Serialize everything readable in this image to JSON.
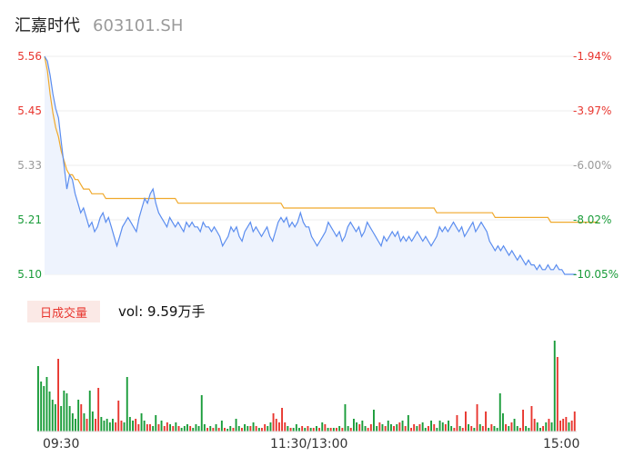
{
  "stock": {
    "name": "汇嘉时代",
    "code": "603101.SH"
  },
  "price_axis": {
    "left_labels": [
      "5.56",
      "5.45",
      "5.33",
      "5.21",
      "5.10"
    ],
    "right_labels": [
      "-1.94%",
      "-3.97%",
      "-6.00%",
      "-8.02%",
      "-10.05%"
    ],
    "left_colors": [
      "#e8362f",
      "#e8362f",
      "#9a9a9a",
      "#1a9c3a",
      "#1a9c3a"
    ],
    "right_colors": [
      "#e8362f",
      "#e8362f",
      "#9a9a9a",
      "#1a9c3a",
      "#1a9c3a"
    ]
  },
  "volume_panel": {
    "label": "日成交量",
    "value_text": "vol: 9.59万手"
  },
  "time_axis": {
    "start": "09:30",
    "mid": "11:30/13:00",
    "end": "15:00"
  },
  "colors": {
    "price_line": "#5b8def",
    "avg_line": "#f0a92c",
    "up": "#e8362f",
    "down": "#1a9c3a"
  },
  "chart_data": {
    "type": "line",
    "ylim": [
      5.1,
      5.56
    ],
    "series": [
      {
        "values": [
          5.56,
          5.55,
          5.52,
          5.48,
          5.45,
          5.43,
          5.38,
          5.33,
          5.28,
          5.31,
          5.3,
          5.27,
          5.25,
          5.23,
          5.24,
          5.22,
          5.2,
          5.21,
          5.19,
          5.2,
          5.22,
          5.23,
          5.21,
          5.22,
          5.2,
          5.18,
          5.16,
          5.18,
          5.2,
          5.21,
          5.22,
          5.21,
          5.2,
          5.19,
          5.22,
          5.24,
          5.26,
          5.25,
          5.27,
          5.28,
          5.25,
          5.23,
          5.22,
          5.21,
          5.2,
          5.22,
          5.21,
          5.2,
          5.21,
          5.2,
          5.19,
          5.21,
          5.2,
          5.21,
          5.2,
          5.2,
          5.19,
          5.21,
          5.2,
          5.2,
          5.19,
          5.2,
          5.19,
          5.18,
          5.16,
          5.17,
          5.18,
          5.2,
          5.19,
          5.2,
          5.18,
          5.17,
          5.19,
          5.2,
          5.21,
          5.19,
          5.2,
          5.19,
          5.18,
          5.19,
          5.2,
          5.18,
          5.17,
          5.19,
          5.21,
          5.22,
          5.21,
          5.22,
          5.2,
          5.21,
          5.2,
          5.21,
          5.23,
          5.21,
          5.2,
          5.2,
          5.18,
          5.17,
          5.16,
          5.17,
          5.18,
          5.19,
          5.21,
          5.2,
          5.19,
          5.18,
          5.19,
          5.17,
          5.18,
          5.2,
          5.21,
          5.2,
          5.19,
          5.2,
          5.18,
          5.19,
          5.21,
          5.2,
          5.19,
          5.18,
          5.17,
          5.16,
          5.18,
          5.17,
          5.18,
          5.19,
          5.18,
          5.19,
          5.17,
          5.18,
          5.17,
          5.18,
          5.17,
          5.18,
          5.19,
          5.18,
          5.17,
          5.18,
          5.17,
          5.16,
          5.17,
          5.18,
          5.2,
          5.19,
          5.2,
          5.19,
          5.2,
          5.21,
          5.2,
          5.19,
          5.2,
          5.18,
          5.19,
          5.2,
          5.21,
          5.19,
          5.2,
          5.21,
          5.2,
          5.19,
          5.17,
          5.16,
          5.15,
          5.16,
          5.15,
          5.16,
          5.15,
          5.14,
          5.15,
          5.14,
          5.13,
          5.14,
          5.13,
          5.12,
          5.13,
          5.12,
          5.12,
          5.11,
          5.12,
          5.11,
          5.11,
          5.12,
          5.11,
          5.11,
          5.12,
          5.11,
          5.11,
          5.1,
          5.1,
          5.1,
          5.1,
          5.1
        ]
      },
      {
        "values": [
          5.56,
          5.53,
          5.48,
          5.44,
          5.41,
          5.39,
          5.36,
          5.34,
          5.32,
          5.31,
          5.31,
          5.3,
          5.3,
          5.29,
          5.28,
          5.28,
          5.28,
          5.27,
          5.27,
          5.27,
          5.27,
          5.27,
          5.26,
          5.26,
          5.26,
          5.26,
          5.26,
          5.26,
          5.26,
          5.26,
          5.26,
          5.26,
          5.26,
          5.26,
          5.26,
          5.26,
          5.26,
          5.26,
          5.26,
          5.26,
          5.26,
          5.26,
          5.26,
          5.26,
          5.26,
          5.26,
          5.26,
          5.26,
          5.25,
          5.25,
          5.25,
          5.25,
          5.25,
          5.25,
          5.25,
          5.25,
          5.25,
          5.25,
          5.25,
          5.25,
          5.25,
          5.25,
          5.25,
          5.25,
          5.25,
          5.25,
          5.25,
          5.25,
          5.25,
          5.25,
          5.25,
          5.25,
          5.25,
          5.25,
          5.25,
          5.25,
          5.25,
          5.25,
          5.25,
          5.25,
          5.25,
          5.25,
          5.25,
          5.25,
          5.25,
          5.25,
          5.24,
          5.24,
          5.24,
          5.24,
          5.24,
          5.24,
          5.24,
          5.24,
          5.24,
          5.24,
          5.24,
          5.24,
          5.24,
          5.24,
          5.24,
          5.24,
          5.24,
          5.24,
          5.24,
          5.24,
          5.24,
          5.24,
          5.24,
          5.24,
          5.24,
          5.24,
          5.24,
          5.24,
          5.24,
          5.24,
          5.24,
          5.24,
          5.24,
          5.24,
          5.24,
          5.24,
          5.24,
          5.24,
          5.24,
          5.24,
          5.24,
          5.24,
          5.24,
          5.24,
          5.24,
          5.24,
          5.24,
          5.24,
          5.24,
          5.24,
          5.24,
          5.24,
          5.24,
          5.24,
          5.24,
          5.23,
          5.23,
          5.23,
          5.23,
          5.23,
          5.23,
          5.23,
          5.23,
          5.23,
          5.23,
          5.23,
          5.23,
          5.23,
          5.23,
          5.23,
          5.23,
          5.23,
          5.23,
          5.23,
          5.23,
          5.23,
          5.22,
          5.22,
          5.22,
          5.22,
          5.22,
          5.22,
          5.22,
          5.22,
          5.22,
          5.22,
          5.22,
          5.22,
          5.22,
          5.22,
          5.22,
          5.22,
          5.22,
          5.22,
          5.22,
          5.22,
          5.21,
          5.21,
          5.21,
          5.21,
          5.21,
          5.21,
          5.21,
          5.21,
          5.21,
          5.21,
          5.21,
          5.21,
          5.21,
          5.21,
          5.21,
          5.21,
          5.21,
          5.21
        ]
      }
    ],
    "volume": [
      [
        72,
        "down"
      ],
      [
        55,
        "down"
      ],
      [
        50,
        "down"
      ],
      [
        60,
        "down"
      ],
      [
        44,
        "down"
      ],
      [
        35,
        "down"
      ],
      [
        30,
        "down"
      ],
      [
        80,
        "up"
      ],
      [
        28,
        "down"
      ],
      [
        45,
        "down"
      ],
      [
        42,
        "down"
      ],
      [
        28,
        "down"
      ],
      [
        20,
        "down"
      ],
      [
        14,
        "down"
      ],
      [
        35,
        "down"
      ],
      [
        30,
        "up"
      ],
      [
        20,
        "down"
      ],
      [
        14,
        "up"
      ],
      [
        45,
        "down"
      ],
      [
        22,
        "down"
      ],
      [
        14,
        "up"
      ],
      [
        48,
        "up"
      ],
      [
        16,
        "down"
      ],
      [
        12,
        "down"
      ],
      [
        14,
        "down"
      ],
      [
        10,
        "down"
      ],
      [
        14,
        "down"
      ],
      [
        10,
        "up"
      ],
      [
        34,
        "up"
      ],
      [
        12,
        "up"
      ],
      [
        10,
        "down"
      ],
      [
        60,
        "down"
      ],
      [
        16,
        "down"
      ],
      [
        12,
        "down"
      ],
      [
        14,
        "up"
      ],
      [
        8,
        "up"
      ],
      [
        20,
        "down"
      ],
      [
        12,
        "down"
      ],
      [
        8,
        "up"
      ],
      [
        8,
        "up"
      ],
      [
        6,
        "down"
      ],
      [
        18,
        "down"
      ],
      [
        8,
        "up"
      ],
      [
        12,
        "down"
      ],
      [
        6,
        "up"
      ],
      [
        10,
        "up"
      ],
      [
        8,
        "down"
      ],
      [
        6,
        "up"
      ],
      [
        10,
        "down"
      ],
      [
        6,
        "up"
      ],
      [
        4,
        "down"
      ],
      [
        6,
        "down"
      ],
      [
        8,
        "down"
      ],
      [
        6,
        "up"
      ],
      [
        4,
        "down"
      ],
      [
        8,
        "down"
      ],
      [
        6,
        "down"
      ],
      [
        40,
        "down"
      ],
      [
        8,
        "down"
      ],
      [
        4,
        "up"
      ],
      [
        6,
        "down"
      ],
      [
        4,
        "up"
      ],
      [
        8,
        "down"
      ],
      [
        4,
        "up"
      ],
      [
        12,
        "down"
      ],
      [
        4,
        "up"
      ],
      [
        3,
        "down"
      ],
      [
        6,
        "down"
      ],
      [
        4,
        "up"
      ],
      [
        14,
        "down"
      ],
      [
        6,
        "down"
      ],
      [
        4,
        "up"
      ],
      [
        8,
        "down"
      ],
      [
        6,
        "down"
      ],
      [
        6,
        "up"
      ],
      [
        10,
        "down"
      ],
      [
        6,
        "up"
      ],
      [
        4,
        "down"
      ],
      [
        4,
        "up"
      ],
      [
        8,
        "up"
      ],
      [
        6,
        "down"
      ],
      [
        10,
        "down"
      ],
      [
        20,
        "up"
      ],
      [
        14,
        "up"
      ],
      [
        10,
        "up"
      ],
      [
        26,
        "up"
      ],
      [
        10,
        "up"
      ],
      [
        6,
        "down"
      ],
      [
        4,
        "up"
      ],
      [
        4,
        "down"
      ],
      [
        8,
        "down"
      ],
      [
        4,
        "down"
      ],
      [
        6,
        "up"
      ],
      [
        4,
        "down"
      ],
      [
        6,
        "up"
      ],
      [
        4,
        "down"
      ],
      [
        4,
        "up"
      ],
      [
        6,
        "down"
      ],
      [
        4,
        "up"
      ],
      [
        10,
        "down"
      ],
      [
        8,
        "up"
      ],
      [
        4,
        "down"
      ],
      [
        4,
        "up"
      ],
      [
        4,
        "down"
      ],
      [
        4,
        "up"
      ],
      [
        6,
        "down"
      ],
      [
        4,
        "up"
      ],
      [
        30,
        "down"
      ],
      [
        6,
        "down"
      ],
      [
        4,
        "up"
      ],
      [
        14,
        "down"
      ],
      [
        10,
        "down"
      ],
      [
        8,
        "up"
      ],
      [
        12,
        "down"
      ],
      [
        6,
        "down"
      ],
      [
        4,
        "up"
      ],
      [
        8,
        "up"
      ],
      [
        24,
        "down"
      ],
      [
        6,
        "down"
      ],
      [
        10,
        "up"
      ],
      [
        8,
        "down"
      ],
      [
        6,
        "up"
      ],
      [
        12,
        "down"
      ],
      [
        8,
        "down"
      ],
      [
        6,
        "up"
      ],
      [
        8,
        "down"
      ],
      [
        10,
        "up"
      ],
      [
        12,
        "down"
      ],
      [
        6,
        "up"
      ],
      [
        18,
        "down"
      ],
      [
        4,
        "up"
      ],
      [
        8,
        "up"
      ],
      [
        6,
        "down"
      ],
      [
        8,
        "up"
      ],
      [
        10,
        "down"
      ],
      [
        4,
        "down"
      ],
      [
        6,
        "up"
      ],
      [
        12,
        "down"
      ],
      [
        8,
        "up"
      ],
      [
        4,
        "down"
      ],
      [
        12,
        "down"
      ],
      [
        10,
        "down"
      ],
      [
        8,
        "up"
      ],
      [
        12,
        "down"
      ],
      [
        6,
        "down"
      ],
      [
        4,
        "up"
      ],
      [
        18,
        "up"
      ],
      [
        6,
        "down"
      ],
      [
        4,
        "up"
      ],
      [
        22,
        "up"
      ],
      [
        8,
        "down"
      ],
      [
        6,
        "up"
      ],
      [
        4,
        "down"
      ],
      [
        30,
        "up"
      ],
      [
        8,
        "down"
      ],
      [
        6,
        "up"
      ],
      [
        22,
        "up"
      ],
      [
        4,
        "down"
      ],
      [
        8,
        "up"
      ],
      [
        6,
        "down"
      ],
      [
        4,
        "down"
      ],
      [
        42,
        "down"
      ],
      [
        20,
        "down"
      ],
      [
        8,
        "up"
      ],
      [
        6,
        "down"
      ],
      [
        10,
        "up"
      ],
      [
        14,
        "down"
      ],
      [
        6,
        "down"
      ],
      [
        4,
        "up"
      ],
      [
        24,
        "up"
      ],
      [
        6,
        "down"
      ],
      [
        4,
        "down"
      ],
      [
        28,
        "up"
      ],
      [
        14,
        "up"
      ],
      [
        10,
        "down"
      ],
      [
        4,
        "down"
      ],
      [
        6,
        "up"
      ],
      [
        10,
        "down"
      ],
      [
        14,
        "up"
      ],
      [
        10,
        "down"
      ],
      [
        100,
        "down"
      ],
      [
        82,
        "up"
      ],
      [
        12,
        "up"
      ],
      [
        14,
        "up"
      ],
      [
        16,
        "up"
      ],
      [
        10,
        "down"
      ],
      [
        12,
        "up"
      ],
      [
        22,
        "up"
      ]
    ]
  }
}
